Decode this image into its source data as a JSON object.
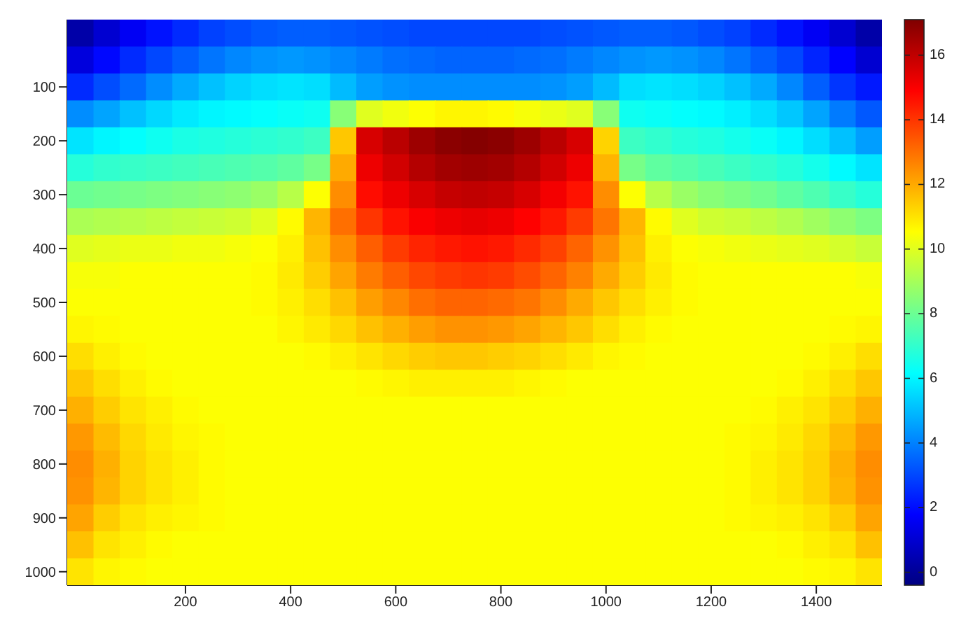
{
  "chart_data": {
    "type": "heatmap",
    "categories": [
      null,
      null,
      null,
      null,
      "200",
      null,
      null,
      null,
      "400",
      null,
      null,
      null,
      "600",
      null,
      null,
      null,
      "800",
      null,
      null,
      null,
      "1000",
      null,
      null,
      null,
      "1200",
      null,
      null,
      null,
      "1400",
      null,
      null
    ],
    "y_categories": [
      null,
      null,
      "100",
      null,
      "200",
      null,
      "300",
      null,
      "400",
      null,
      "500",
      null,
      "600",
      null,
      "700",
      null,
      "800",
      null,
      "900",
      null,
      "1000"
    ],
    "clim": [
      -0.4,
      17.1
    ],
    "cticks": [
      0,
      2,
      4,
      6,
      8,
      10,
      12,
      14,
      16
    ],
    "cells": [
      [
        0.3,
        1.0,
        1.6,
        2.1,
        2.5,
        2.9,
        3.1,
        3.3,
        3.4,
        3.4,
        3.3,
        3.2,
        3.1,
        3.0,
        3.0,
        3.0,
        3.0,
        3.0,
        3.1,
        3.2,
        3.3,
        3.4,
        3.4,
        3.3,
        3.1,
        2.9,
        2.5,
        2.1,
        1.6,
        1.0,
        0.3
      ],
      [
        1.2,
        1.9,
        2.5,
        3.0,
        3.4,
        3.8,
        4.1,
        4.3,
        4.4,
        4.3,
        4.1,
        3.9,
        3.7,
        3.6,
        3.5,
        3.5,
        3.5,
        3.6,
        3.7,
        3.9,
        4.1,
        4.3,
        4.4,
        4.3,
        4.1,
        3.8,
        3.4,
        3.0,
        2.4,
        1.8,
        1.0
      ],
      [
        2.5,
        3.1,
        3.6,
        4.2,
        4.7,
        5.1,
        5.4,
        5.6,
        5.7,
        5.6,
        5.0,
        4.5,
        4.3,
        4.2,
        4.2,
        4.2,
        4.2,
        4.2,
        4.3,
        4.5,
        5.0,
        5.6,
        5.7,
        5.6,
        5.4,
        5.1,
        4.7,
        4.1,
        3.4,
        2.7,
        2.2
      ],
      [
        4.2,
        4.6,
        5.1,
        5.5,
        5.8,
        6.0,
        6.1,
        6.2,
        6.3,
        6.4,
        8.5,
        10.0,
        10.3,
        10.5,
        10.7,
        10.7,
        10.6,
        10.4,
        10.2,
        10.0,
        8.5,
        6.4,
        6.3,
        6.2,
        6.1,
        5.9,
        5.6,
        5.2,
        4.6,
        3.9,
        3.3
      ],
      [
        5.7,
        6.0,
        6.2,
        6.4,
        6.6,
        6.7,
        6.8,
        6.9,
        7.0,
        7.2,
        11.5,
        15.6,
        16.1,
        16.6,
        16.9,
        17.0,
        16.9,
        16.6,
        16.1,
        15.6,
        11.3,
        7.2,
        7.0,
        6.8,
        6.7,
        6.5,
        6.3,
        6.0,
        5.6,
        5.1,
        4.5
      ],
      [
        6.8,
        7.0,
        7.1,
        7.2,
        7.3,
        7.4,
        7.5,
        7.6,
        7.8,
        8.2,
        12.0,
        15.2,
        15.7,
        16.2,
        16.5,
        16.6,
        16.5,
        16.2,
        15.7,
        15.2,
        11.8,
        8.2,
        7.8,
        7.6,
        7.4,
        7.2,
        7.0,
        6.8,
        6.5,
        6.1,
        5.7
      ],
      [
        8.0,
        8.1,
        8.2,
        8.3,
        8.4,
        8.5,
        8.6,
        8.8,
        9.3,
        10.5,
        12.5,
        14.7,
        15.2,
        15.6,
        15.9,
        16.0,
        15.9,
        15.6,
        15.1,
        14.6,
        12.5,
        10.5,
        9.3,
        8.8,
        8.5,
        8.3,
        8.1,
        7.8,
        7.5,
        7.1,
        6.8
      ],
      [
        9.1,
        9.2,
        9.3,
        9.4,
        9.5,
        9.6,
        9.7,
        10.0,
        10.6,
        11.8,
        13.0,
        14.0,
        14.6,
        15.0,
        15.2,
        15.3,
        15.2,
        14.9,
        14.5,
        13.9,
        12.9,
        11.8,
        10.6,
        10.0,
        9.7,
        9.6,
        9.4,
        9.2,
        8.9,
        8.6,
        8.3
      ],
      [
        10.0,
        10.1,
        10.2,
        10.2,
        10.3,
        10.3,
        10.4,
        10.5,
        10.8,
        11.6,
        12.5,
        13.3,
        13.9,
        14.3,
        14.5,
        14.6,
        14.5,
        14.2,
        13.8,
        13.2,
        12.4,
        11.6,
        10.8,
        10.5,
        10.4,
        10.3,
        10.2,
        10.1,
        10.0,
        9.8,
        9.6
      ],
      [
        10.4,
        10.4,
        10.5,
        10.5,
        10.5,
        10.5,
        10.5,
        10.6,
        10.9,
        11.4,
        12.1,
        12.8,
        13.3,
        13.7,
        13.9,
        14.0,
        13.9,
        13.6,
        13.2,
        12.7,
        12.0,
        11.4,
        10.9,
        10.6,
        10.5,
        10.5,
        10.5,
        10.5,
        10.5,
        10.5,
        10.4
      ],
      [
        10.5,
        10.5,
        10.5,
        10.5,
        10.5,
        10.5,
        10.5,
        10.6,
        10.8,
        11.1,
        11.6,
        12.2,
        12.6,
        13.0,
        13.2,
        13.2,
        13.1,
        12.9,
        12.5,
        12.0,
        11.5,
        11.1,
        10.8,
        10.6,
        10.5,
        10.5,
        10.5,
        10.5,
        10.5,
        10.5,
        10.5
      ],
      [
        10.7,
        10.6,
        10.5,
        10.5,
        10.5,
        10.5,
        10.5,
        10.5,
        10.7,
        10.9,
        11.2,
        11.6,
        11.9,
        12.2,
        12.4,
        12.4,
        12.3,
        12.1,
        11.8,
        11.5,
        11.1,
        10.8,
        10.6,
        10.5,
        10.5,
        10.5,
        10.5,
        10.5,
        10.5,
        10.6,
        10.7
      ],
      [
        11.1,
        10.8,
        10.6,
        10.5,
        10.5,
        10.5,
        10.5,
        10.5,
        10.5,
        10.6,
        10.8,
        11.0,
        11.2,
        11.4,
        11.5,
        11.5,
        11.4,
        11.3,
        11.1,
        10.9,
        10.7,
        10.6,
        10.5,
        10.5,
        10.5,
        10.5,
        10.5,
        10.5,
        10.6,
        10.8,
        11.1
      ],
      [
        11.5,
        11.1,
        10.8,
        10.6,
        10.5,
        10.5,
        10.5,
        10.5,
        10.5,
        10.5,
        10.5,
        10.6,
        10.7,
        10.8,
        10.8,
        10.8,
        10.8,
        10.7,
        10.6,
        10.5,
        10.5,
        10.5,
        10.5,
        10.5,
        10.5,
        10.5,
        10.5,
        10.6,
        10.8,
        11.1,
        11.5
      ],
      [
        11.9,
        11.4,
        11.0,
        10.8,
        10.6,
        10.5,
        10.5,
        10.5,
        10.5,
        10.5,
        10.5,
        10.5,
        10.5,
        10.5,
        10.5,
        10.5,
        10.5,
        10.5,
        10.5,
        10.5,
        10.5,
        10.5,
        10.5,
        10.5,
        10.5,
        10.5,
        10.6,
        10.8,
        11.0,
        11.4,
        11.9
      ],
      [
        12.3,
        11.7,
        11.2,
        10.9,
        10.7,
        10.6,
        10.5,
        10.5,
        10.5,
        10.5,
        10.5,
        10.5,
        10.5,
        10.5,
        10.5,
        10.5,
        10.5,
        10.5,
        10.5,
        10.5,
        10.5,
        10.5,
        10.5,
        10.5,
        10.5,
        10.6,
        10.7,
        10.9,
        11.2,
        11.7,
        12.3
      ],
      [
        12.5,
        11.9,
        11.3,
        11.0,
        10.8,
        10.6,
        10.5,
        10.5,
        10.5,
        10.5,
        10.5,
        10.5,
        10.5,
        10.5,
        10.5,
        10.5,
        10.5,
        10.5,
        10.5,
        10.5,
        10.5,
        10.5,
        10.5,
        10.5,
        10.5,
        10.6,
        10.8,
        11.0,
        11.3,
        11.9,
        12.5
      ],
      [
        12.4,
        11.8,
        11.3,
        11.0,
        10.8,
        10.6,
        10.5,
        10.5,
        10.5,
        10.5,
        10.5,
        10.5,
        10.5,
        10.5,
        10.5,
        10.5,
        10.5,
        10.5,
        10.5,
        10.5,
        10.5,
        10.5,
        10.5,
        10.5,
        10.5,
        10.6,
        10.8,
        11.0,
        11.3,
        11.8,
        12.4
      ],
      [
        12.1,
        11.4,
        11.0,
        10.8,
        10.7,
        10.6,
        10.5,
        10.5,
        10.5,
        10.5,
        10.5,
        10.5,
        10.5,
        10.5,
        10.5,
        10.5,
        10.5,
        10.5,
        10.5,
        10.5,
        10.5,
        10.5,
        10.5,
        10.5,
        10.5,
        10.6,
        10.7,
        10.8,
        11.0,
        11.4,
        12.1
      ],
      [
        11.6,
        11.0,
        10.8,
        10.6,
        10.5,
        10.5,
        10.5,
        10.5,
        10.5,
        10.5,
        10.5,
        10.5,
        10.5,
        10.5,
        10.5,
        10.5,
        10.5,
        10.5,
        10.5,
        10.5,
        10.5,
        10.5,
        10.5,
        10.5,
        10.5,
        10.5,
        10.5,
        10.6,
        10.8,
        11.0,
        11.6
      ],
      [
        11.0,
        10.7,
        10.6,
        10.5,
        10.5,
        10.5,
        10.5,
        10.5,
        10.5,
        10.5,
        10.5,
        10.5,
        10.5,
        10.5,
        10.5,
        10.5,
        10.5,
        10.5,
        10.5,
        10.5,
        10.5,
        10.5,
        10.5,
        10.5,
        10.5,
        10.5,
        10.5,
        10.5,
        10.6,
        10.7,
        11.0
      ]
    ]
  }
}
